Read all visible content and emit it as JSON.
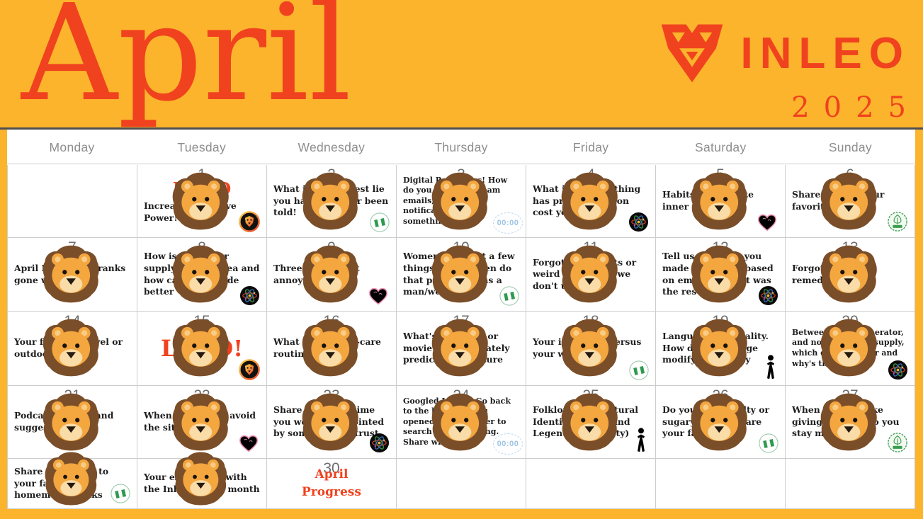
{
  "banner": {
    "month_title": "April",
    "year": "2025",
    "brand_name": "INLEO",
    "background_color": "#FBB42C",
    "accent_color": "#F0421F"
  },
  "calendar": {
    "day_headers": [
      "Monday",
      "Tuesday",
      "Wednesday",
      "Thursday",
      "Friday",
      "Saturday",
      "Sunday"
    ],
    "icons": {
      "timer_label": "00:00"
    },
    "cells": [
      {
        "date": "",
        "text": "",
        "lion": false,
        "icon": ""
      },
      {
        "date": "1",
        "red_text": "HPUD",
        "red_size": "md",
        "text": "Increase your Hive Power!",
        "lion": true,
        "icon": "leo-badge"
      },
      {
        "date": "2",
        "text": "What is the biggest lie you have heard or been told!",
        "lion": true,
        "icon": "nigeria-flag"
      },
      {
        "date": "3",
        "text": "Digital Pet Peeves! How do you deal with spam emails, constant notifications, or something else.",
        "small": true,
        "lion": true,
        "icon": "timer"
      },
      {
        "date": "4",
        "text": "What important thing has procrastination cost you?",
        "lion": true,
        "icon": "atom"
      },
      {
        "date": "5",
        "text": "Habits to cultivate inner peace",
        "lion": true,
        "icon": "heart"
      },
      {
        "date": "6",
        "text": "Share with us your favorites",
        "lion": true,
        "icon": "green-badge"
      },
      {
        "date": "7",
        "text": "April Fools Day pranks gone wrong",
        "lion": true,
        "icon": ""
      },
      {
        "date": "8",
        "text": "How is the power supply in your area and how can it be made better",
        "lion": true,
        "icon": "atom"
      },
      {
        "date": "9",
        "text": "Three things that annoy you",
        "lion": true,
        "icon": "heart"
      },
      {
        "date": "10",
        "text": "Women/Men, list a few things men/women do that peeves you as a man/woman",
        "lion": true,
        "icon": "nigeria-flag"
      },
      {
        "date": "11",
        "text": "Forgotten gadgets or weird inventions we don't use today",
        "lion": true,
        "icon": ""
      },
      {
        "date": "12",
        "text": "Tell us of a time you made a decision based on emotion. What was the result?",
        "lion": true,
        "icon": "atom"
      },
      {
        "date": "13",
        "text": "Forgotten home remedies",
        "lion": true,
        "icon": ""
      },
      {
        "date": "14",
        "text": "Your favorite travel or outdoor activity",
        "lion": true,
        "icon": ""
      },
      {
        "date": "15",
        "red_text": "LPUD!",
        "red_size": "lg",
        "text": "",
        "lion": true,
        "icon": "leo-badge"
      },
      {
        "date": "16",
        "text": "What is your self-care routine?",
        "lion": true,
        "icon": ""
      },
      {
        "date": "17",
        "text": "What's one book or movie that accurately predicted the future",
        "lion": true,
        "icon": ""
      },
      {
        "date": "18",
        "text": "Your ideal date versus your worst date",
        "lion": true,
        "icon": "nigeria-flag"
      },
      {
        "date": "19",
        "text": "Language and reality. How does language modify our reality",
        "lion": true,
        "icon": "person"
      },
      {
        "date": "20",
        "text": "Between solar, generator, and normal power supply, which do you prefer and why's that?",
        "small": true,
        "lion": true,
        "icon": "atom"
      },
      {
        "date": "21",
        "text": "Podcast reviews and suggestions",
        "lion": true,
        "icon": ""
      },
      {
        "date": "22",
        "text": "When you had to avoid the situation",
        "lion": true,
        "icon": "heart"
      },
      {
        "date": "23",
        "text": "Share with us a time you were disappointed by someone you trust",
        "lion": true,
        "icon": "atom"
      },
      {
        "date": "24",
        "text": "Googled Lately? Go back to the last time you opened your browser to search for something. Share with us",
        "small": true,
        "lion": true,
        "icon": "timer"
      },
      {
        "date": "25",
        "text": "Folklore and Cultural Identity (Myths and Legends in Society)",
        "lion": true,
        "icon": "person"
      },
      {
        "date": "26",
        "text": "Do you prefer salty or sugary foods? Share your favorites",
        "lion": true,
        "icon": "nigeria-flag"
      },
      {
        "date": "27",
        "text": "When you feel like giving up, how do you stay motivated?",
        "lion": true,
        "icon": "green-badge"
      },
      {
        "date": "28",
        "text": "Share the recipe to your favorite homemade drinks",
        "lion": true,
        "icon": "nigeria-flag"
      },
      {
        "date": "29",
        "text": "Your experience with the Inleo UI this month",
        "lion": true,
        "icon": ""
      },
      {
        "date": "30",
        "red_text": "April Progress",
        "red_size": "sm",
        "text": "",
        "lion": false,
        "icon": ""
      },
      {
        "date": "",
        "text": "",
        "lion": false,
        "icon": ""
      },
      {
        "date": "",
        "text": "",
        "lion": false,
        "icon": ""
      },
      {
        "date": "",
        "text": "",
        "lion": false,
        "icon": ""
      },
      {
        "date": "",
        "text": "",
        "lion": false,
        "icon": ""
      }
    ]
  }
}
